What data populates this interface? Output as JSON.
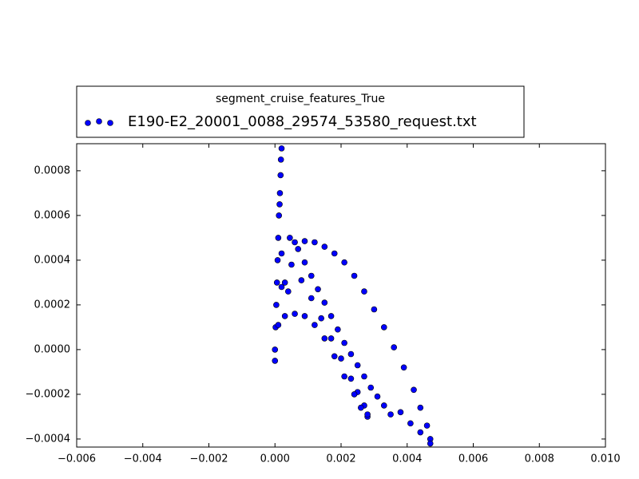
{
  "chart_data": {
    "type": "scatter",
    "legend_title": "segment_cruise_features_True",
    "legend": "outside-top-left",
    "x": [
      0,
      0,
      2e-05,
      4e-05,
      6e-05,
      8e-05,
      0.0001,
      0.00012,
      0.00014,
      0.00015,
      0.00017,
      0.00018,
      0.0002,
      0.0006,
      0.0009,
      0.0012,
      0.0015,
      0.0018,
      0.0021,
      0.0024,
      0.0027,
      0.003,
      0.0033,
      0.0036,
      0.0039,
      0.0042,
      0.0044,
      0.0046,
      0.0047,
      0.0047,
      0.0038,
      0.0041,
      0.0044,
      0.00045,
      0.0007,
      0.0009,
      0.0011,
      0.0013,
      0.0015,
      0.0017,
      0.0019,
      0.0021,
      0.0023,
      0.0025,
      0.0027,
      0.0029,
      0.0031,
      0.0033,
      0.0035,
      0.0002,
      0.0005,
      0.0008,
      0.0011,
      0.0014,
      0.0017,
      0.002,
      0.0023,
      0.0025,
      0.0027,
      0.0028,
      0.0001,
      0.0003,
      0.0006,
      0.0009,
      0.0012,
      0.0015,
      0.0018,
      0.0021,
      0.0024,
      0.0026,
      0.0028,
      0.0003,
      0.0004,
      0.0002
    ],
    "series": [
      {
        "name": "E190-E2_20001_0088_29574_53580_request.txt",
        "color": "#0000ff",
        "values": [
          -5e-05,
          0,
          0.0001,
          0.0002,
          0.0003,
          0.0004,
          0.0005,
          0.0006,
          0.00065,
          0.0007,
          0.00078,
          0.00085,
          0.0009,
          0.00048,
          0.000485,
          0.00048,
          0.00046,
          0.00043,
          0.00039,
          0.00033,
          0.00026,
          0.00018,
          0.0001,
          1e-05,
          -8e-05,
          -0.00018,
          -0.00026,
          -0.00034,
          -0.0004,
          -0.00042,
          -0.00028,
          -0.00033,
          -0.00037,
          0.0005,
          0.00045,
          0.00039,
          0.00033,
          0.00027,
          0.00021,
          0.00015,
          9e-05,
          3e-05,
          -2e-05,
          -7e-05,
          -0.00012,
          -0.00017,
          -0.00021,
          -0.00025,
          -0.00029,
          0.00043,
          0.00038,
          0.00031,
          0.00023,
          0.00014,
          5e-05,
          -4e-05,
          -0.00013,
          -0.00019,
          -0.00025,
          -0.0003,
          0.00011,
          0.00015,
          0.00016,
          0.00015,
          0.00011,
          5e-05,
          -3e-05,
          -0.00012,
          -0.0002,
          -0.00026,
          -0.00029,
          0.0003,
          0.00026,
          0.00028
        ]
      }
    ],
    "xlim": [
      -0.006,
      0.01
    ],
    "ylim": [
      -0.000436,
      0.000921
    ],
    "xticks": [
      {
        "value": -0.006,
        "label": "−0.006"
      },
      {
        "value": -0.004,
        "label": "−0.004"
      },
      {
        "value": -0.002,
        "label": "−0.002"
      },
      {
        "value": 0,
        "label": "0.000"
      },
      {
        "value": 0.002,
        "label": "0.002"
      },
      {
        "value": 0.004,
        "label": "0.004"
      },
      {
        "value": 0.006,
        "label": "0.006"
      },
      {
        "value": 0.008,
        "label": "0.008"
      },
      {
        "value": 0.01,
        "label": "0.010"
      }
    ],
    "yticks": [
      {
        "value": -0.0004,
        "label": "−0.0004"
      },
      {
        "value": -0.0002,
        "label": "−0.0002"
      },
      {
        "value": 0,
        "label": "0.0000"
      },
      {
        "value": 0.0002,
        "label": "0.0002"
      },
      {
        "value": 0.0004,
        "label": "0.0004"
      },
      {
        "value": 0.0006,
        "label": "0.0006"
      },
      {
        "value": 0.0008,
        "label": "0.0008"
      }
    ]
  }
}
